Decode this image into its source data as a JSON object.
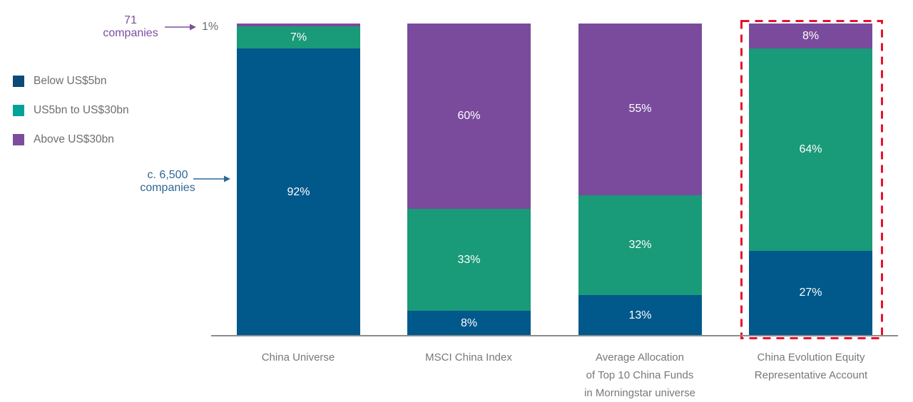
{
  "colors": {
    "bar_below": "#00588b",
    "bar_mid": "#199a79",
    "bar_above": "#7a4b9c",
    "legend_below": "#0d4a78",
    "legend_mid": "#00a398",
    "legend_above": "#7c4d9f",
    "axis": "#8c8c8c",
    "category_text": "#77787b",
    "legend_text": "#6d6e71",
    "annotation_purple": "#7d4f9e",
    "annotation_blue": "#2e6795",
    "highlight_red": "#e8112d",
    "segment_label": "#ffffff"
  },
  "legend": {
    "items": [
      {
        "label": "Below US$5bn",
        "color": "legend_below"
      },
      {
        "label": "US5bn to US$30bn",
        "color": "legend_mid"
      },
      {
        "label": "Above US$30bn",
        "color": "legend_above"
      }
    ]
  },
  "annotations": {
    "top": {
      "line1": "71",
      "line2": "companies",
      "target_label": "1%"
    },
    "bottom": {
      "line1": "c. 6,500",
      "line2": "companies"
    }
  },
  "chart_data": {
    "type": "bar",
    "stacked": true,
    "unit": "%",
    "ylim": [
      0,
      100
    ],
    "grid": false,
    "legend_position": "left",
    "categories": [
      "China Universe",
      "MSCI China Index",
      "Average Allocation of Top 10 China Funds in Morningstar universe",
      "China Evolution Equity Representative Account"
    ],
    "categories_display": [
      [
        "China Universe"
      ],
      [
        "MSCI China Index"
      ],
      [
        "Average Allocation",
        "of Top 10 China Funds",
        "in Morningstar universe"
      ],
      [
        "China Evolution Equity",
        "Representative Account"
      ]
    ],
    "series": [
      {
        "name": "Below US$5bn",
        "values": [
          92,
          8,
          13,
          27
        ]
      },
      {
        "name": "US5bn to US$30bn",
        "values": [
          7,
          33,
          32,
          64
        ]
      },
      {
        "name": "Above US$30bn",
        "values": [
          1,
          60,
          55,
          8
        ]
      }
    ],
    "highlighted_category": "China Evolution Equity Representative Account",
    "bars": [
      {
        "segments": [
          {
            "series": "Above US$30bn",
            "value": 1,
            "color": "bar_above",
            "label": ""
          },
          {
            "series": "US5bn to US$30bn",
            "value": 7,
            "color": "bar_mid",
            "label": "7%"
          },
          {
            "series": "Below US$5bn",
            "value": 92,
            "color": "bar_below",
            "label": "92%"
          }
        ]
      },
      {
        "segments": [
          {
            "series": "Above US$30bn",
            "value": 60,
            "color": "bar_above",
            "label": "60%"
          },
          {
            "series": "US5bn to US$30bn",
            "value": 33,
            "color": "bar_mid",
            "label": "33%"
          },
          {
            "series": "Below US$5bn",
            "value": 8,
            "color": "bar_below",
            "label": "8%"
          }
        ]
      },
      {
        "segments": [
          {
            "series": "Above US$30bn",
            "value": 55,
            "color": "bar_above",
            "label": "55%"
          },
          {
            "series": "US5bn to US$30bn",
            "value": 32,
            "color": "bar_mid",
            "label": "32%"
          },
          {
            "series": "Below US$5bn",
            "value": 13,
            "color": "bar_below",
            "label": "13%"
          }
        ]
      },
      {
        "segments": [
          {
            "series": "Above US$30bn",
            "value": 8,
            "color": "bar_above",
            "label": "8%"
          },
          {
            "series": "US5bn to US$30bn",
            "value": 64,
            "color": "bar_mid",
            "label": "64%"
          },
          {
            "series": "Below US$5bn",
            "value": 27,
            "color": "bar_below",
            "label": "27%"
          }
        ]
      }
    ]
  }
}
